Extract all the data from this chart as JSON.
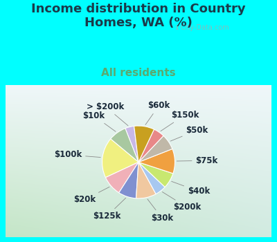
{
  "title": "Income distribution in Country\nHomes, WA (%)",
  "subtitle": "All residents",
  "bg_cyan": "#00FFFF",
  "bg_chart_color": "#c8ecd8",
  "labels": [
    "> $200k",
    "$10k",
    "$100k",
    "$20k",
    "$125k",
    "$30k",
    "$200k",
    "$40k",
    "$75k",
    "$50k",
    "$150k",
    "$60k"
  ],
  "sizes": [
    4,
    8,
    18,
    9,
    8,
    9,
    5,
    7,
    11,
    7,
    5,
    9
  ],
  "colors": [
    "#c8b8e8",
    "#a8c8a0",
    "#f0f080",
    "#f0b0b8",
    "#8090d0",
    "#f0c8a0",
    "#a8c8f0",
    "#c8e870",
    "#f0a040",
    "#c0b8a8",
    "#e88888",
    "#c8a020"
  ],
  "label_fontsize": 8.5,
  "title_fontsize": 13,
  "subtitle_fontsize": 11,
  "title_color": "#1a3a4a",
  "subtitle_color": "#5aaa70",
  "watermark": "City-Data.com",
  "startangle": 97
}
